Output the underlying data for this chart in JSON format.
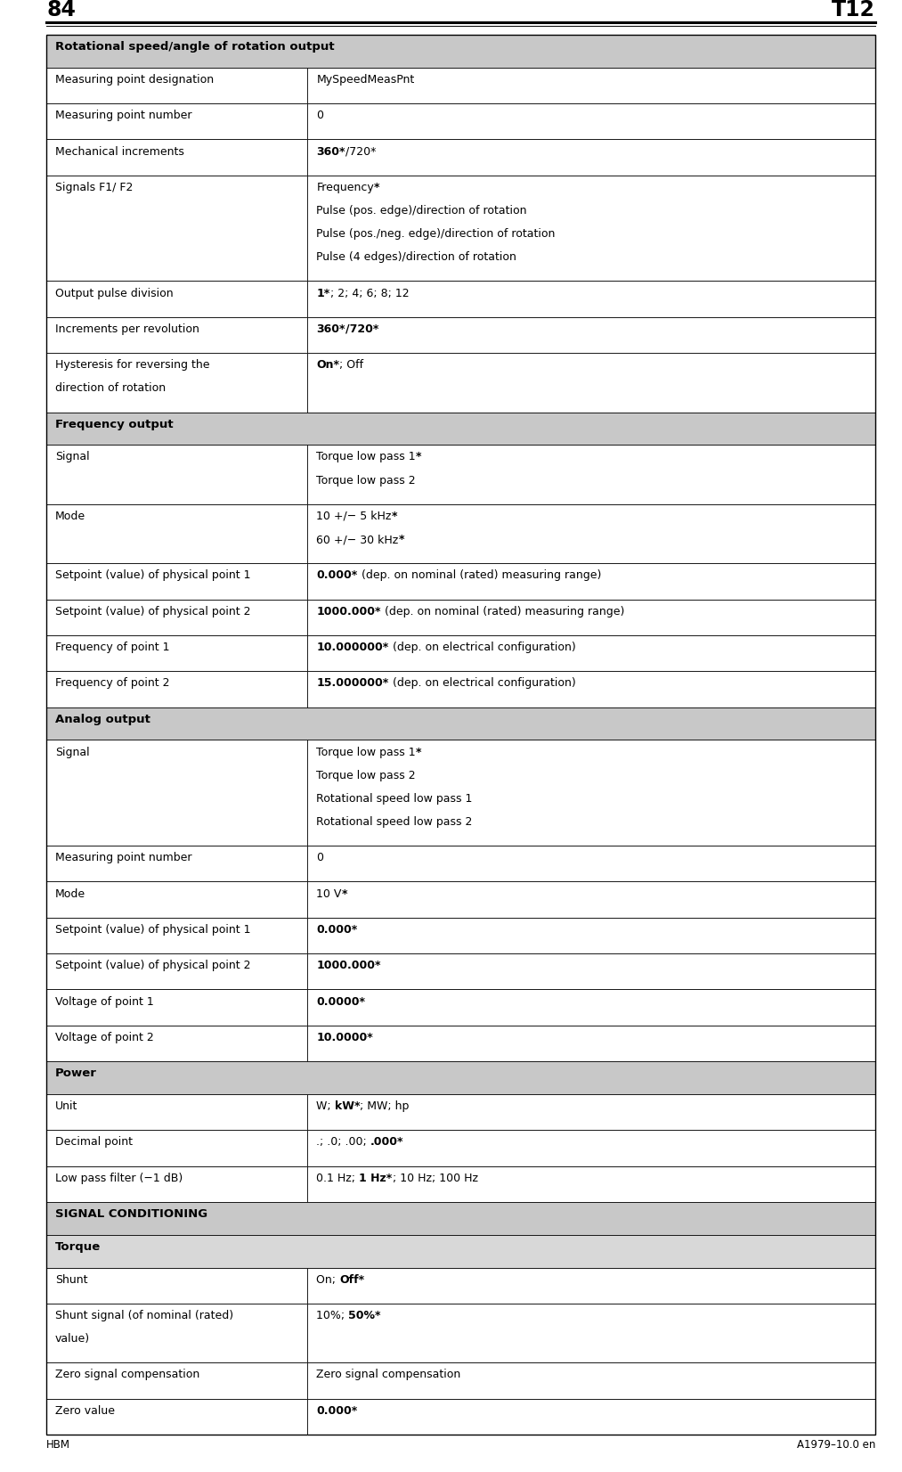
{
  "page_number": "84",
  "page_code": "T12",
  "footer_left": "HBM",
  "footer_right": "A1979–10.0 en",
  "background_color": "#ffffff",
  "col_split": 0.315,
  "rows": [
    {
      "type": "section",
      "col1": "Rotational speed/angle of rotation output",
      "col2": ""
    },
    {
      "type": "data",
      "col1": "Measuring point designation",
      "col2_parts": [
        [
          "MySpeedMeasPnt",
          false
        ]
      ]
    },
    {
      "type": "data",
      "col1": "Measuring point number",
      "col2_parts": [
        [
          "0",
          false
        ]
      ]
    },
    {
      "type": "data",
      "col1": "Mechanical increments",
      "col2_parts": [
        [
          "360*",
          true
        ],
        [
          "/720*",
          false
        ]
      ]
    },
    {
      "type": "data_multi",
      "col1": "Signals F1/ F2",
      "col2_lines": [
        [
          [
            "Frequency",
            false
          ],
          [
            "*",
            true
          ]
        ],
        [
          [
            "Pulse (pos. edge)/direction of rotation",
            false
          ]
        ],
        [
          [
            "Pulse (pos./neg. edge)/direction of rotation",
            false
          ]
        ],
        [
          [
            "Pulse (4 edges)/direction of rotation",
            false
          ]
        ]
      ]
    },
    {
      "type": "data",
      "col1": "Output pulse division",
      "col2_parts": [
        [
          "1*",
          true
        ],
        [
          "; 2; 4; 6; 8; 12",
          false
        ]
      ]
    },
    {
      "type": "data",
      "col1": "Increments per revolution",
      "col2_parts": [
        [
          "360*",
          true
        ],
        [
          "/720*",
          true
        ]
      ]
    },
    {
      "type": "data_multi",
      "col1": "Hysteresis for reversing the\ndirection of rotation",
      "col2_lines": [
        [
          [
            "On*",
            true
          ],
          [
            "; Off",
            false
          ]
        ]
      ]
    },
    {
      "type": "section",
      "col1": "Frequency output",
      "col2": ""
    },
    {
      "type": "data_multi",
      "col1": "Signal",
      "col2_lines": [
        [
          [
            "Torque low pass 1",
            false
          ],
          [
            "*",
            true
          ]
        ],
        [
          [
            "Torque low pass 2",
            false
          ]
        ]
      ]
    },
    {
      "type": "data_multi",
      "col1": "Mode",
      "col2_lines": [
        [
          [
            "10 +/− 5 kHz",
            false
          ],
          [
            "*",
            true
          ]
        ],
        [
          [
            "60 +/− 30 kHz",
            false
          ],
          [
            "*",
            true
          ]
        ]
      ]
    },
    {
      "type": "data",
      "col1": "Setpoint (value) of physical point 1",
      "col2_parts": [
        [
          "0.000*",
          true
        ],
        [
          " (dep. on nominal (rated) measuring range)",
          false
        ]
      ]
    },
    {
      "type": "data",
      "col1": "Setpoint (value) of physical point 2",
      "col2_parts": [
        [
          "1000.000*",
          true
        ],
        [
          " (dep. on nominal (rated) measuring range)",
          false
        ]
      ]
    },
    {
      "type": "data",
      "col1": "Frequency of point 1",
      "col2_parts": [
        [
          "10.000000*",
          true
        ],
        [
          " (dep. on electrical configuration)",
          false
        ]
      ]
    },
    {
      "type": "data",
      "col1": "Frequency of point 2",
      "col2_parts": [
        [
          "15.000000*",
          true
        ],
        [
          " (dep. on electrical configuration)",
          false
        ]
      ]
    },
    {
      "type": "section",
      "col1": "Analog output",
      "col2": ""
    },
    {
      "type": "data_multi",
      "col1": "Signal",
      "col2_lines": [
        [
          [
            "Torque low pass 1",
            false
          ],
          [
            "*",
            true
          ]
        ],
        [
          [
            "Torque low pass 2",
            false
          ]
        ],
        [
          [
            "Rotational speed low pass 1",
            false
          ]
        ],
        [
          [
            "Rotational speed low pass 2",
            false
          ]
        ]
      ]
    },
    {
      "type": "data",
      "col1": "Measuring point number",
      "col2_parts": [
        [
          "0",
          false
        ]
      ]
    },
    {
      "type": "data",
      "col1": "Mode",
      "col2_parts": [
        [
          "10 V",
          false
        ],
        [
          "*",
          true
        ]
      ]
    },
    {
      "type": "data",
      "col1": "Setpoint (value) of physical point 1",
      "col2_parts": [
        [
          "0.000*",
          true
        ]
      ]
    },
    {
      "type": "data",
      "col1": "Setpoint (value) of physical point 2",
      "col2_parts": [
        [
          "1000.000*",
          true
        ]
      ]
    },
    {
      "type": "data",
      "col1": "Voltage of point 1",
      "col2_parts": [
        [
          "0.0000*",
          true
        ]
      ]
    },
    {
      "type": "data",
      "col1": "Voltage of point 2",
      "col2_parts": [
        [
          "10.0000*",
          true
        ]
      ]
    },
    {
      "type": "section",
      "col1": "Power",
      "col2": ""
    },
    {
      "type": "data",
      "col1": "Unit",
      "col2_parts": [
        [
          "W; ",
          false
        ],
        [
          "kW*",
          true
        ],
        [
          "; MW; hp",
          false
        ]
      ]
    },
    {
      "type": "data",
      "col1": "Decimal point",
      "col2_parts": [
        [
          ".; .0; .00; ",
          false
        ],
        [
          ".000*",
          true
        ]
      ]
    },
    {
      "type": "data",
      "col1": "Low pass filter (−1 dB)",
      "col2_parts": [
        [
          "0.1 Hz; ",
          false
        ],
        [
          "1 Hz*",
          true
        ],
        [
          "; 10 Hz; 100 Hz",
          false
        ]
      ]
    },
    {
      "type": "section",
      "col1": "SIGNAL CONDITIONING",
      "col2": ""
    },
    {
      "type": "section2",
      "col1": "Torque",
      "col2": ""
    },
    {
      "type": "data",
      "col1": "Shunt",
      "col2_parts": [
        [
          "On; ",
          false
        ],
        [
          "Off*",
          true
        ]
      ]
    },
    {
      "type": "data_multi",
      "col1": "Shunt signal (of nominal (rated)\nvalue)",
      "col2_lines": [
        [
          [
            "10%; ",
            false
          ],
          [
            "50%*",
            true
          ]
        ]
      ]
    },
    {
      "type": "data",
      "col1": "Zero signal compensation",
      "col2_parts": [
        [
          "Zero signal compensation",
          false
        ]
      ]
    },
    {
      "type": "data",
      "col1": "Zero value",
      "col2_parts": [
        [
          "0.000*",
          true
        ]
      ]
    }
  ]
}
